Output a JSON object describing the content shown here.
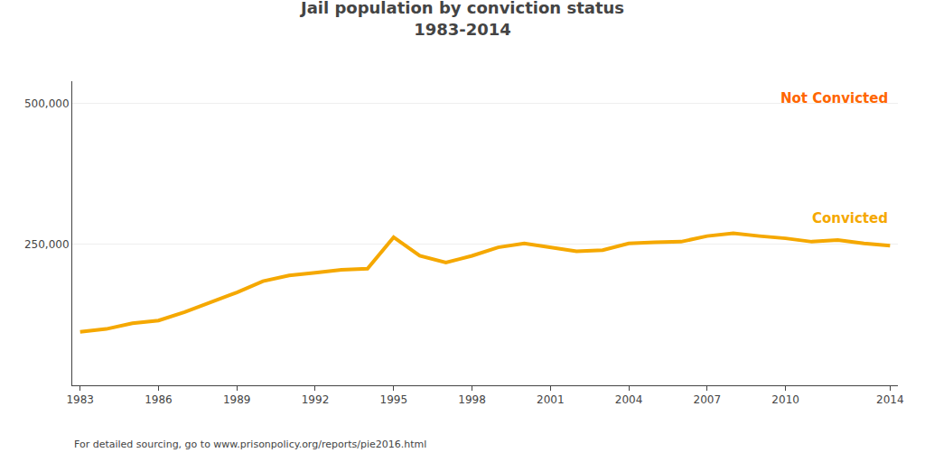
{
  "chart_data": {
    "type": "line",
    "title": "Jail population by conviction status",
    "subtitle": "1983-2014",
    "x": [
      1983,
      1984,
      1985,
      1986,
      1987,
      1988,
      1989,
      1990,
      1991,
      1992,
      1993,
      1994,
      1995,
      1996,
      1997,
      1998,
      1999,
      2000,
      2001,
      2002,
      2003,
      2004,
      2005,
      2006,
      2007,
      2008,
      2009,
      2010,
      2011,
      2012,
      2013,
      2014
    ],
    "values": [
      95000,
      100000,
      110000,
      115000,
      130000,
      148000,
      165000,
      185000,
      195000,
      200000,
      205000,
      207000,
      263000,
      230000,
      218000,
      230000,
      245000,
      252000,
      245000,
      238000,
      240000,
      252000,
      254000,
      255000,
      265000,
      270000,
      265000,
      261000,
      255000,
      258000,
      252000,
      248000
    ],
    "color": "#f5a800",
    "xlim": [
      1982.7,
      2014.3
    ],
    "xticks": [
      1983,
      1986,
      1989,
      1992,
      1995,
      1998,
      2001,
      2004,
      2007,
      2010,
      2014
    ],
    "ylim": [
      0,
      540000
    ],
    "yticks": [
      {
        "value": 250000,
        "label": "250,000"
      },
      {
        "value": 500000,
        "label": "500,000"
      }
    ],
    "grid": "y",
    "annotations": [
      {
        "text": "Not Convicted",
        "color": "#ff6600"
      },
      {
        "text": "Convicted",
        "color": "#f5a800"
      }
    ],
    "footer": "For detailed sourcing, go to www.prisonpolicy.org/reports/pie2016.html"
  }
}
